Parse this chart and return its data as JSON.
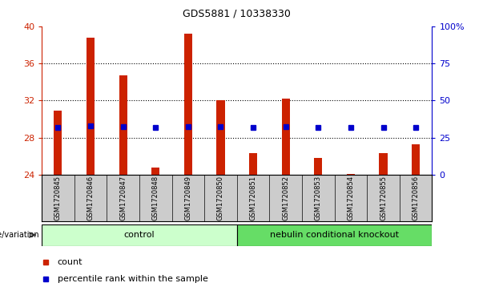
{
  "title": "GDS5881 / 10338330",
  "samples": [
    "GSM1720845",
    "GSM1720846",
    "GSM1720847",
    "GSM1720848",
    "GSM1720849",
    "GSM1720850",
    "GSM1720851",
    "GSM1720852",
    "GSM1720853",
    "GSM1720854",
    "GSM1720855",
    "GSM1720856"
  ],
  "counts": [
    30.9,
    38.8,
    34.7,
    24.8,
    39.2,
    32.0,
    26.3,
    32.2,
    25.8,
    24.1,
    26.3,
    27.3
  ],
  "percentiles": [
    32.0,
    32.8,
    32.2,
    31.5,
    32.4,
    32.1,
    31.7,
    32.5,
    31.7,
    31.6,
    32.0,
    32.0
  ],
  "ylim_left": [
    24,
    40
  ],
  "ylim_right": [
    0,
    100
  ],
  "yticks_left": [
    24,
    28,
    32,
    36,
    40
  ],
  "yticks_right": [
    0,
    25,
    50,
    75,
    100
  ],
  "bar_color": "#cc2200",
  "dot_color": "#0000cc",
  "control_samples": 6,
  "group1_label": "control",
  "group2_label": "nebulin conditional knockout",
  "group1_bg": "#ccffcc",
  "group2_bg": "#66dd66",
  "xlabel_area_bg": "#cccccc",
  "legend_count_label": "count",
  "legend_pct_label": "percentile rank within the sample",
  "genotype_label": "genotype/variation"
}
